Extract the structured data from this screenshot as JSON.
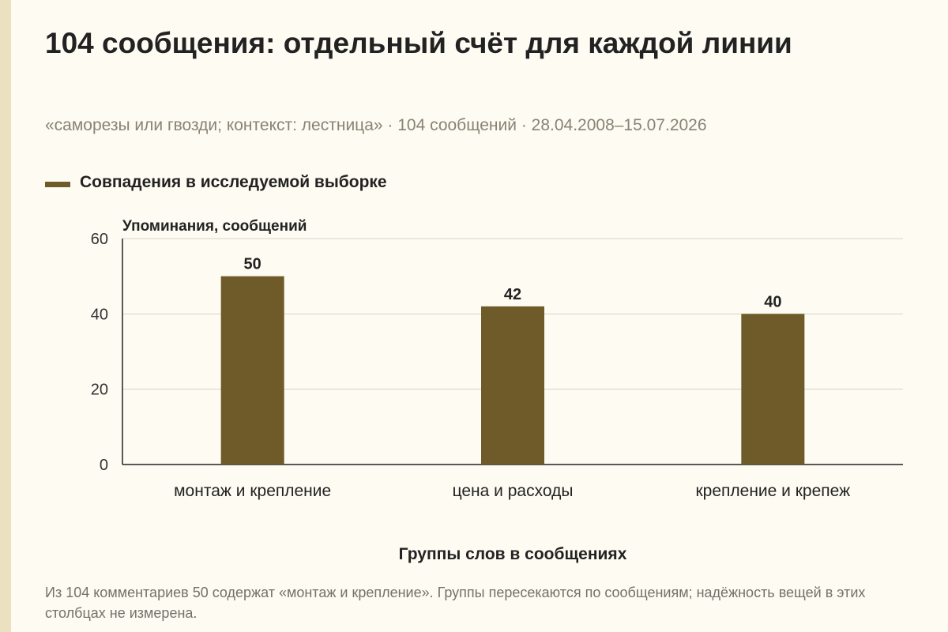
{
  "title": "104 сообщения: отдельный счёт для каждой линии",
  "subtitle": "«саморезы или гвозди; контекст: лестница» · 104 сообщений · 28.04.2008–15.07.2026",
  "note": "Из 104 комментариев 50 содержат «монтаж и крепление». Группы пересекаются по сообщениям; надёжность вещей в этих столбцах не измерена.",
  "colors": {
    "bar": "#6f5a2a",
    "grid": "#d8d3c6",
    "axis": "#222222"
  },
  "chart_data": {
    "type": "bar",
    "categories": [
      "монтаж и крепление",
      "цена и расходы",
      "крепление и крепеж"
    ],
    "series": [
      {
        "name": "Совпадения в исследуемой выборке",
        "values": [
          50,
          42,
          40
        ]
      }
    ],
    "ylabel": "Упоминания, сообщений",
    "xlabel": "Группы слов в сообщениях",
    "ylim": [
      0,
      60
    ],
    "yticks": [
      0,
      20,
      40,
      60
    ],
    "grid": true,
    "legend": "top-left",
    "data_labels": true
  }
}
